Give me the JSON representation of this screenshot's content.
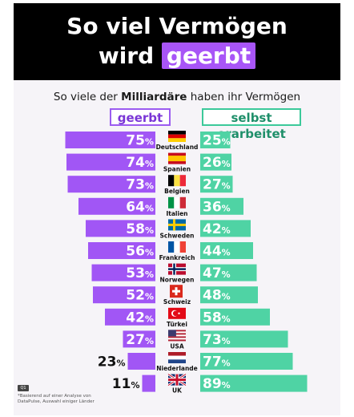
{
  "header": {
    "title_line1": "So viel Vermögen",
    "title_line2_prefix": "wird",
    "title_line2_highlight": "geerbt"
  },
  "subtitle": {
    "pre": "So viele der ",
    "bold": "Milliardäre",
    "post": " haben ihr Vermögen"
  },
  "legend": {
    "left": "geerbt",
    "right": "selbst erarbeitet"
  },
  "footnote": {
    "badge": "Q1",
    "text": "*Basierend auf einer Analyse von DataPulse, Auswahl einiger Länder"
  },
  "colors": {
    "inherited": "#a156f5",
    "self_made": "#4fd3a4",
    "header_bg": "#000000",
    "highlight": "#a855f7"
  },
  "chart_data": {
    "type": "bar",
    "title": "So viel Vermögen wird geerbt",
    "subtitle": "So viele der Milliardäre haben ihr Vermögen",
    "unit": "%",
    "categories": [
      "Deutschland",
      "Spanien",
      "Belgien",
      "Italien",
      "Schweden",
      "Frankreich",
      "Norwegen",
      "Schweiz",
      "Türkei",
      "USA",
      "Niederlande",
      "UK"
    ],
    "flags": [
      "de",
      "es",
      "be",
      "it",
      "se",
      "fr",
      "no",
      "ch",
      "tr",
      "us",
      "nl",
      "uk"
    ],
    "series": [
      {
        "name": "geerbt",
        "values": [
          75,
          74,
          73,
          64,
          58,
          56,
          53,
          52,
          42,
          27,
          23,
          11
        ]
      },
      {
        "name": "selbst erarbeitet",
        "values": [
          25,
          26,
          27,
          36,
          42,
          44,
          47,
          48,
          58,
          73,
          77,
          89
        ]
      }
    ],
    "ylim": [
      0,
      100
    ],
    "legend_position": "top-center"
  }
}
